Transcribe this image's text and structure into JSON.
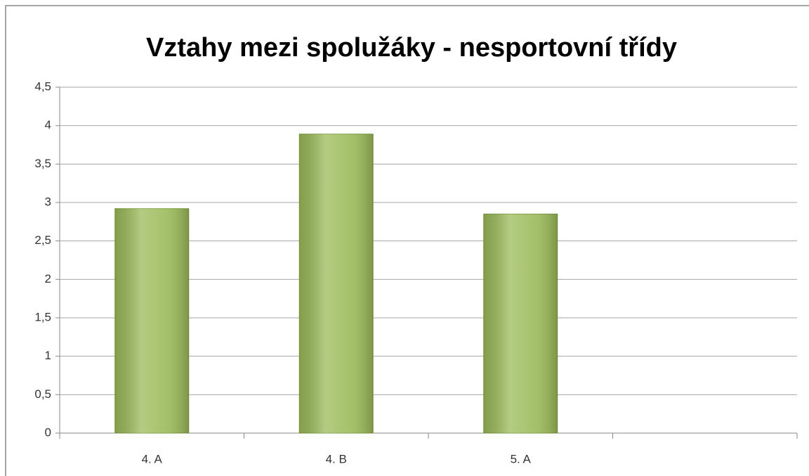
{
  "chart_data": {
    "type": "bar",
    "title": "Vztahy mezi spolužáky - nesportovní třídy",
    "categories": [
      "4. A",
      "4. B",
      "5. A",
      null
    ],
    "values": [
      2.92,
      3.89,
      2.85,
      null
    ],
    "color": "#9bbb59",
    "ylim": [
      0,
      4.5
    ],
    "yticks": [
      0,
      {
        "value": 0.5,
        "label": "0,5"
      },
      1,
      {
        "value": 1.5,
        "label": "1,5"
      },
      2,
      {
        "value": 2.5,
        "label": "2,5"
      },
      3,
      {
        "value": 3.5,
        "label": "3,5"
      },
      4,
      {
        "value": 4.5,
        "label": "4,5"
      }
    ],
    "grid": true
  }
}
